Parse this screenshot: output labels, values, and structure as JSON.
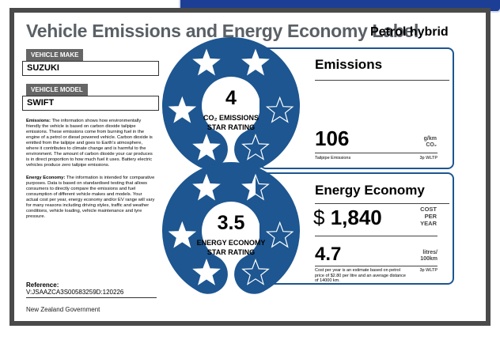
{
  "header": {
    "title": "Vehicle Emissions and Energy Economy Label",
    "subtitle": "Petrol hybrid"
  },
  "vehicle": {
    "make_label": "VEHICLE MAKE",
    "make": "SUZUKI",
    "model_label": "VEHICLE MODEL",
    "model": "SWIFT"
  },
  "notes": {
    "emissions_heading": "Emissions:",
    "emissions_text": "The information shows how environmentally friendly the vehicle is based on carbon dioxide tailpipe emissions. These emissions come from burning fuel in the engine of a petrol or diesel powered vehicle. Carbon dioxide is emitted from the tailpipe and goes to Earth's atmosphere, where it contributes to climate change and is harmful to the environment. The amount of carbon dioxide your car produces is in direct proportion to how much fuel it uses. Battery electric vehicles produce zero tailpipe emissions.",
    "energy_heading": "Energy Economy:",
    "energy_text": "The information is intended for comparative purposes. Data is based on standardised testing that allows consumers to directly compare the emissions and fuel consumption of different vehicle makes and models. Your actual cost per year, energy economy and/or EV range will vary for many reasons including driving styles, traffic and weather conditions, vehicle loading, vehicle maintenance and tyre pressure."
  },
  "reference": {
    "label": "Reference:",
    "value": "V:JSAAZCA3S00583259D:120226"
  },
  "emissions": {
    "rating": 4,
    "rating_label": [
      "CO₂ EMISSIONS",
      "STAR RATING"
    ],
    "title": "Emissions",
    "value": "106",
    "unit": [
      "g/km",
      "CO₂"
    ],
    "caption": "Tailpipe Emissions",
    "standard": "3p WLTP"
  },
  "energy": {
    "rating": 3.5,
    "rating_label": [
      "ENERGY ECONOMY",
      "STAR RATING"
    ],
    "title": "Energy Economy",
    "cost_symbol": "$",
    "cost": "1,840",
    "cost_unit": [
      "COST",
      "PER",
      "YEAR"
    ],
    "consumption": "4.7",
    "consumption_unit": [
      "litres/",
      "100km"
    ],
    "note": "Cost per year is an estimate based on petrol price of $2.80 per litre and an average distance of 14000 km.",
    "standard": "3p WLTP"
  },
  "footer": {
    "text": "New Zealand Government"
  }
}
